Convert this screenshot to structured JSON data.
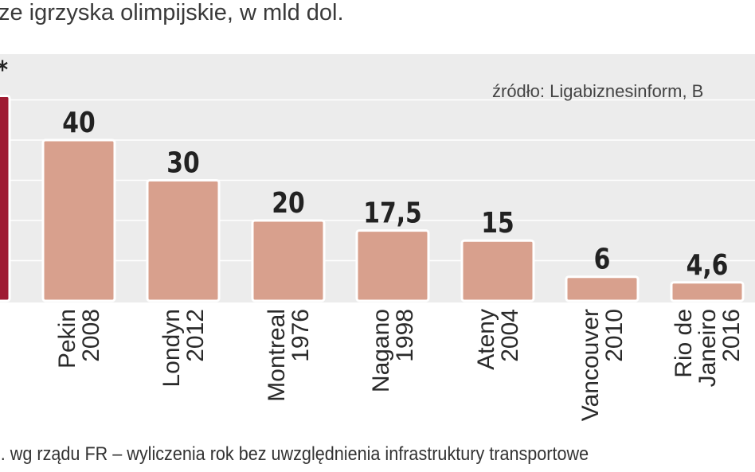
{
  "header": {
    "subtitle": "ze igrzyska olimpijskie, w mld dol."
  },
  "chart_data": {
    "type": "bar",
    "categories": [
      "",
      "Pekin 2008",
      "Londyn 2012",
      "Montreal 1976",
      "Nagano 1998",
      "Ateny 2004",
      "Vancouver 2010",
      "Rio de Janeiro 2016"
    ],
    "category_lines": [
      [
        ""
      ],
      [
        "Pekin",
        "2008"
      ],
      [
        "Londyn",
        "2012"
      ],
      [
        "Montreal",
        "1976"
      ],
      [
        "Nagano",
        "1998"
      ],
      [
        "Ateny",
        "2004"
      ],
      [
        "Vancouver",
        "2010"
      ],
      [
        "Rio de",
        "Janeiro",
        "2016"
      ]
    ],
    "values": [
      51,
      40,
      30,
      20,
      17.5,
      15,
      6,
      4.6
    ],
    "value_labels": [
      "*",
      "40",
      "30",
      "20",
      "17,5",
      "15",
      "6",
      "4,6"
    ],
    "highlight_index": 0,
    "colors": {
      "bar": "#d8a08d",
      "highlight": "#9e1b32",
      "panel": "#ececec",
      "grid": "#ffffff",
      "label": "#222222"
    },
    "ylim": [
      0,
      52
    ],
    "grid": true,
    "source": "źródło: Ligabiznesinform, B",
    "footnote": "l. wg rządu FR – wyliczenia rok bez uwzględnienia infrastruktury transportowe"
  }
}
